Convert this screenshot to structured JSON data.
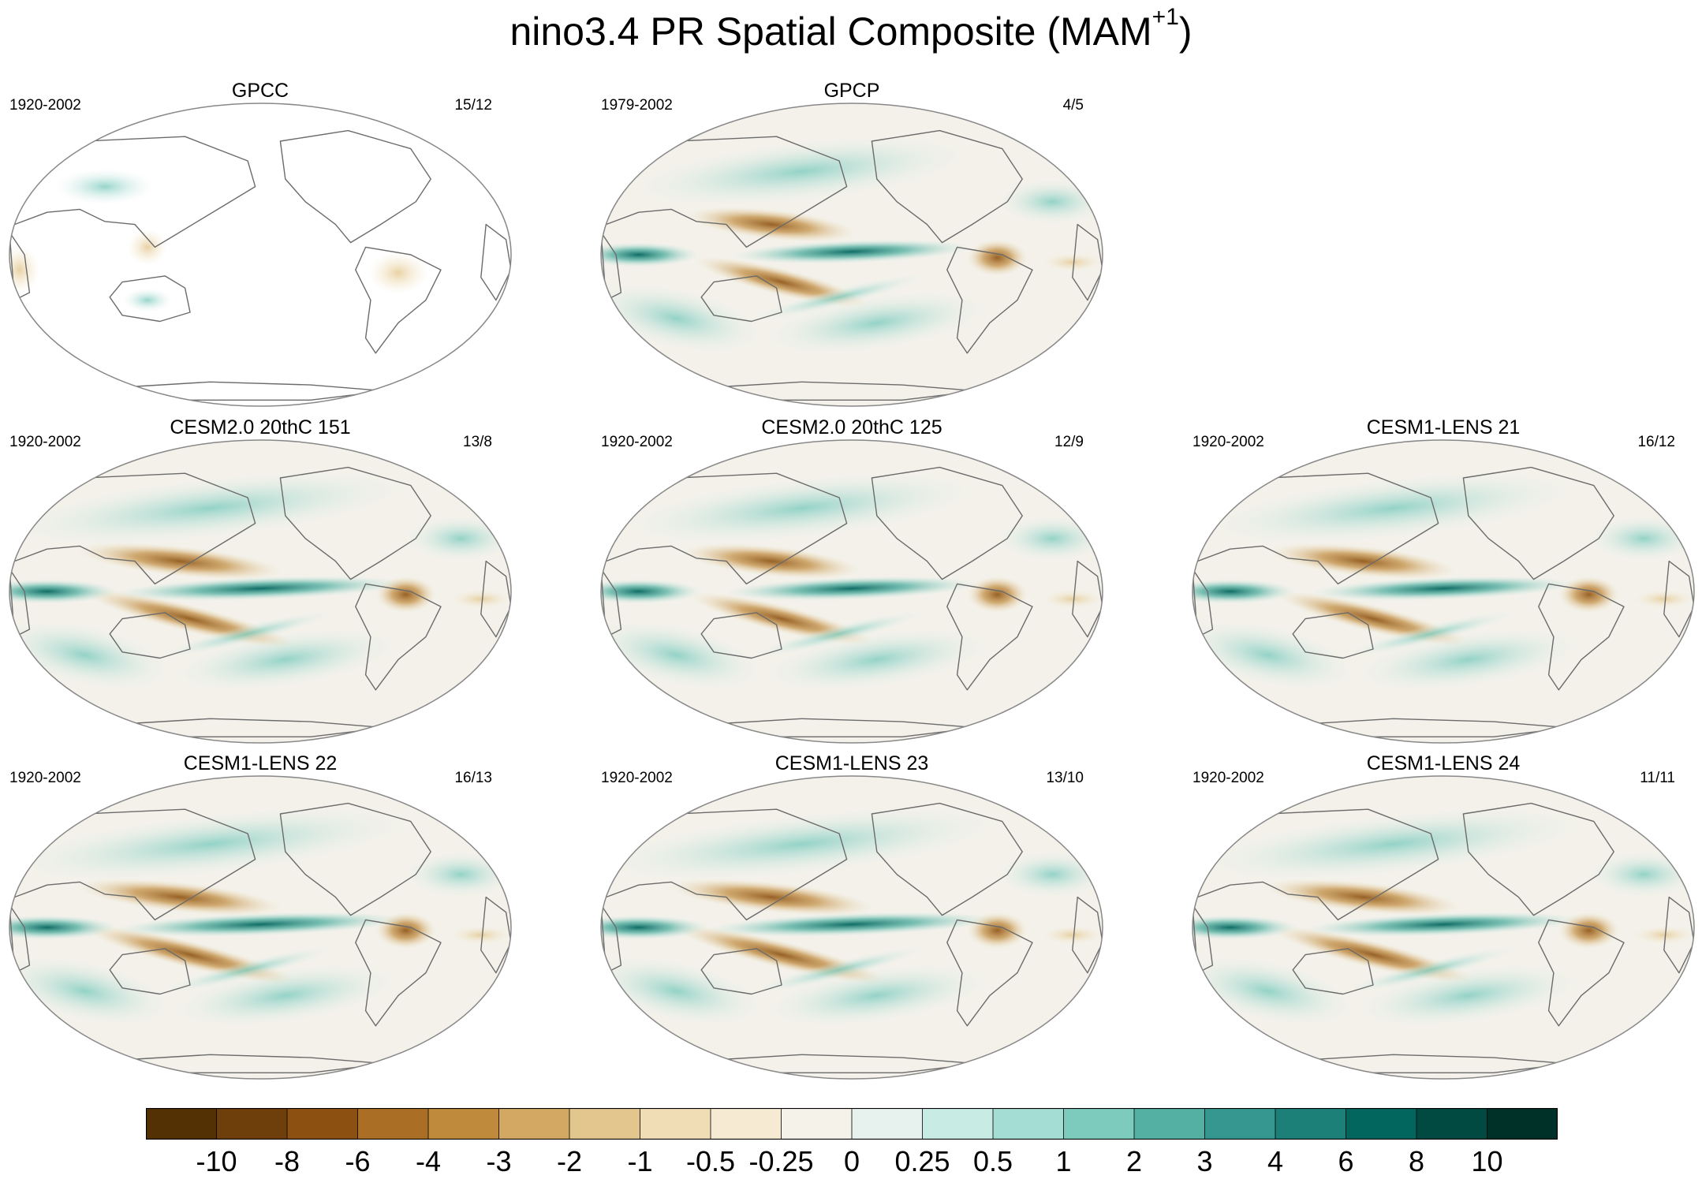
{
  "title": {
    "text": "nino3.4 PR Spatial Composite (MAM",
    "sup": "+1",
    "close": ")"
  },
  "panels": [
    {
      "id": "gpcc",
      "title": "GPCC",
      "period": "1920-2002",
      "count": "15/12",
      "strength": 0.15,
      "landOnly": true
    },
    {
      "id": "gpcp",
      "title": "GPCP",
      "period": "1979-2002",
      "count": "4/5",
      "strength": 0.8,
      "landOnly": false
    },
    {
      "id": "cesm2-151",
      "title": "CESM2.0 20thC 151",
      "period": "1920-2002",
      "count": "13/8",
      "strength": 1.0,
      "landOnly": false
    },
    {
      "id": "cesm2-125",
      "title": "CESM2.0 20thC 125",
      "period": "1920-2002",
      "count": "12/9",
      "strength": 0.85,
      "landOnly": false
    },
    {
      "id": "lens21",
      "title": "CESM1-LENS 21",
      "period": "1920-2002",
      "count": "16/12",
      "strength": 0.9,
      "landOnly": false
    },
    {
      "id": "lens22",
      "title": "CESM1-LENS 22",
      "period": "1920-2002",
      "count": "16/13",
      "strength": 1.0,
      "landOnly": false
    },
    {
      "id": "lens23",
      "title": "CESM1-LENS 23",
      "period": "1920-2002",
      "count": "13/10",
      "strength": 1.0,
      "landOnly": false
    },
    {
      "id": "lens24",
      "title": "CESM1-LENS 24",
      "period": "1920-2002",
      "count": "11/11",
      "strength": 0.95,
      "landOnly": false
    }
  ],
  "colorbar": {
    "labels": [
      "-10",
      "-8",
      "-6",
      "-4",
      "-3",
      "-2",
      "-1",
      "-0.5",
      "-0.25",
      "0",
      "0.25",
      "0.5",
      "1",
      "2",
      "3",
      "4",
      "6",
      "8",
      "10"
    ],
    "colors": [
      "#543005",
      "#6e3f0b",
      "#8c5110",
      "#aa6e24",
      "#c08a3c",
      "#d2a862",
      "#e3c68d",
      "#f0ddb5",
      "#f6ebd2",
      "#f5f2ea",
      "#e7f2ef",
      "#c8ebe4",
      "#a4ddd4",
      "#7ccbbd",
      "#54b0a2",
      "#35978f",
      "#1c7f78",
      "#03665e",
      "#014a42",
      "#003129"
    ]
  },
  "palette": {
    "ocean_blank": "#ffffff",
    "land_line": "#6b6b6b",
    "frame": "#888888"
  }
}
